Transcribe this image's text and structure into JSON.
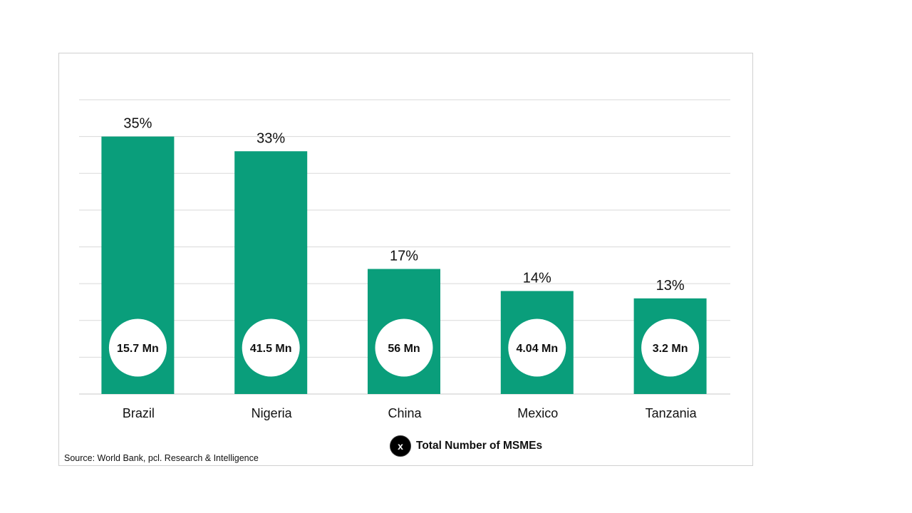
{
  "chart_data": {
    "type": "bar",
    "categories": [
      "Brazil",
      "Nigeria",
      "China",
      "Mexico",
      "Tanzania"
    ],
    "values": [
      35,
      33,
      17,
      14,
      13
    ],
    "value_labels": [
      "35%",
      "33%",
      "17%",
      "14%",
      "13%"
    ],
    "msme_labels": [
      "15.7 Mn",
      "41.5 Mn",
      "56 Mn",
      "4.04 Mn",
      "3.2 Mn"
    ],
    "ylim": [
      0,
      40
    ],
    "grid": true,
    "bar_color": "#0a9e7b",
    "title": "",
    "xlabel": "",
    "ylabel": ""
  },
  "legend": {
    "marker_text": "x",
    "label": "Total Number of MSMEs"
  },
  "source": "Source:  World  Bank, pcl. Research & Intelligence"
}
